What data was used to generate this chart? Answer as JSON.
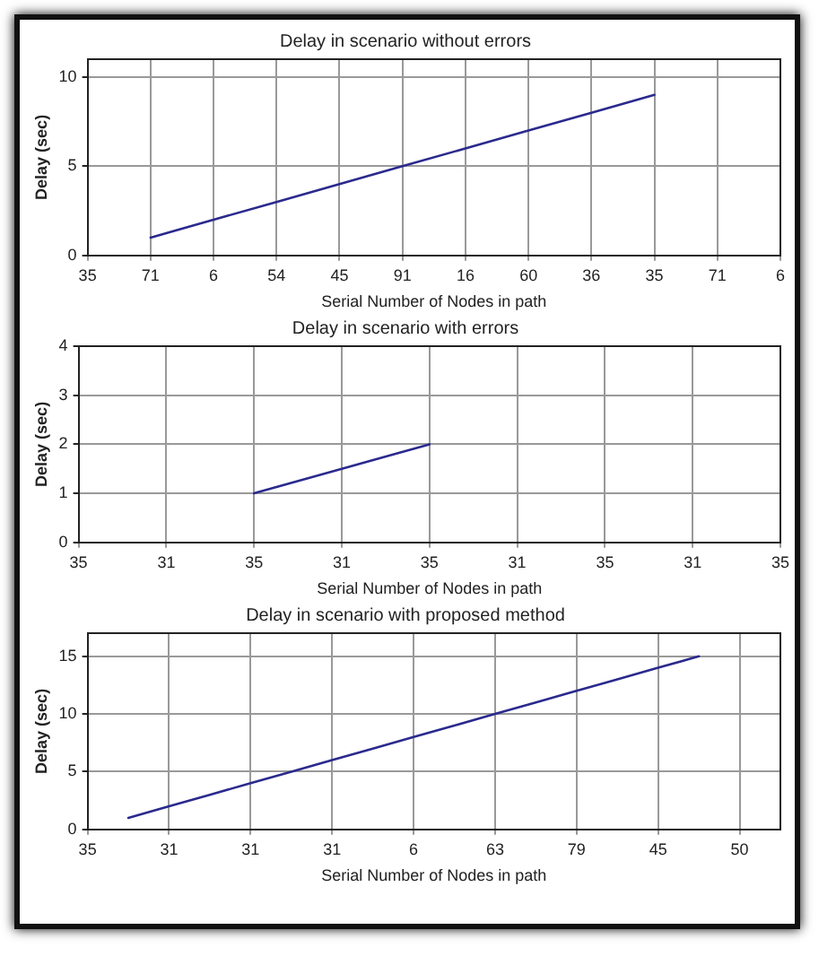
{
  "chart_data": [
    {
      "type": "line",
      "title": "Delay in scenario without errors",
      "xlabel": "Serial Number of Nodes in path",
      "ylabel": "Delay (sec)",
      "categories": [
        "35",
        "71",
        "6",
        "54",
        "45",
        "91",
        "16",
        "60",
        "36",
        "35",
        "71",
        "6"
      ],
      "series": [
        {
          "color": "#2a2a8e",
          "values": [
            null,
            1,
            2,
            3,
            4,
            5,
            6,
            7,
            8,
            9,
            null,
            null
          ]
        }
      ],
      "ylim": [
        0,
        11
      ],
      "yticks": [
        0,
        5,
        10
      ],
      "grid": true
    },
    {
      "type": "line",
      "title": "Delay in scenario with errors",
      "xlabel": "Serial Number of Nodes in path",
      "ylabel": "Delay (sec)",
      "categories": [
        "35",
        "31",
        "35",
        "31",
        "35",
        "31",
        "35",
        "31",
        "35"
      ],
      "series": [
        {
          "color": "#2a2a8e",
          "values": [
            null,
            null,
            1,
            1.5,
            2,
            null,
            null,
            null,
            null
          ]
        }
      ],
      "ylim": [
        0,
        4
      ],
      "yticks": [
        0,
        1,
        2,
        3,
        4
      ],
      "grid": true
    },
    {
      "type": "line",
      "title": "Delay in scenario with proposed method",
      "xlabel": "Serial Number of Nodes in path",
      "ylabel": "Delay (sec)",
      "categories": [
        "35",
        null,
        "31",
        null,
        "31",
        null,
        "31",
        null,
        "6",
        null,
        "63",
        null,
        "79",
        null,
        "45",
        null,
        "50",
        null
      ],
      "series": [
        {
          "color": "#2a2a8e",
          "values": [
            null,
            1,
            2,
            3,
            4,
            5,
            6,
            7,
            8,
            9,
            10,
            11,
            12,
            13,
            14,
            15,
            null,
            null
          ]
        }
      ],
      "ylim": [
        0,
        17
      ],
      "yticks": [
        0,
        5,
        10,
        15
      ],
      "grid": true
    }
  ]
}
